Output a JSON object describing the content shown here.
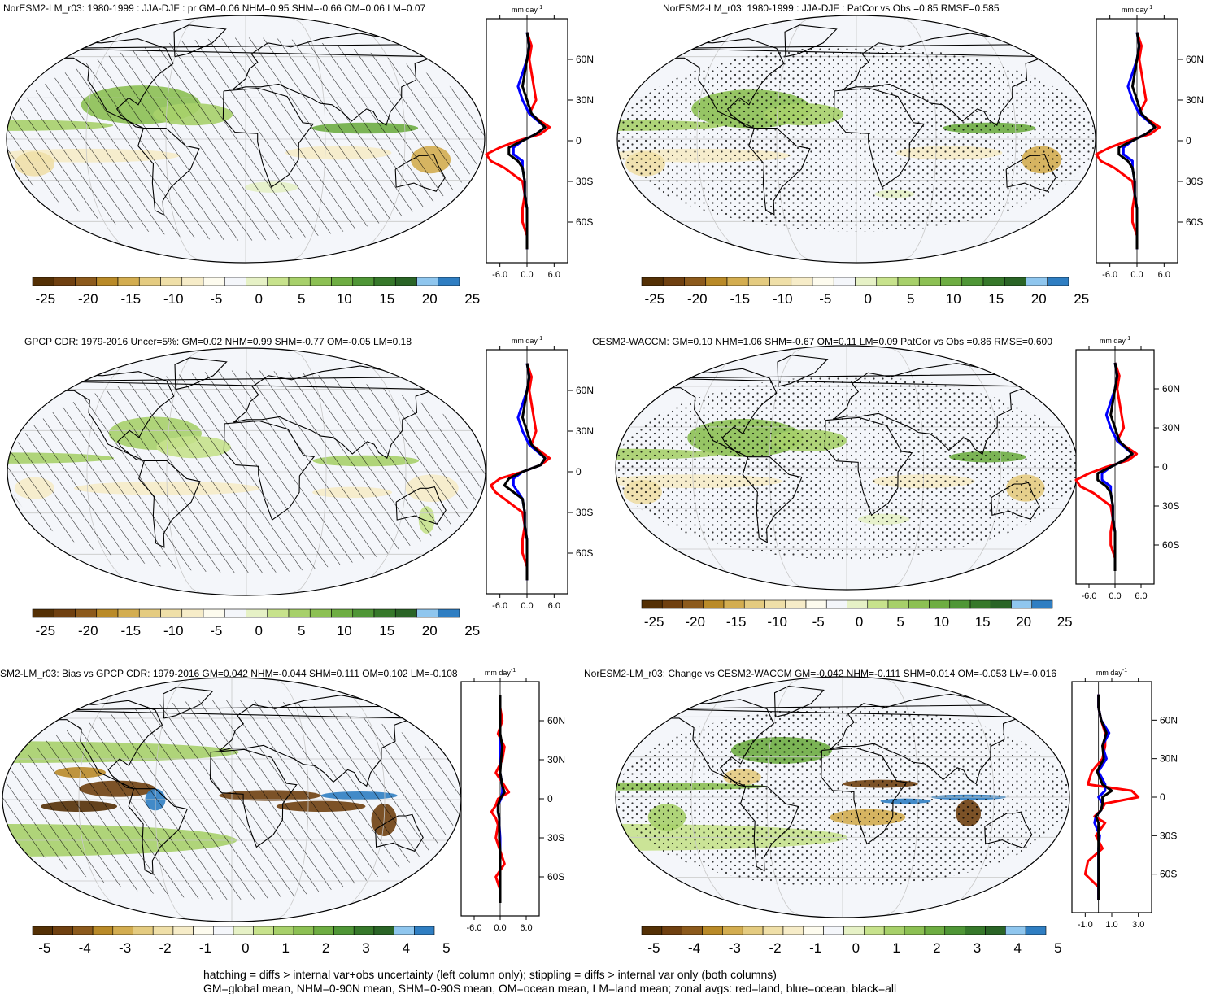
{
  "colors": {
    "colorbar": [
      "#543005",
      "#6f4010",
      "#8c5a1c",
      "#b98a28",
      "#d3ad50",
      "#e4cb80",
      "#efdfa8",
      "#f6ecc8",
      "#fdfbee",
      "#f4f6fa",
      "#e6f1c6",
      "#c7e28c",
      "#a7d06a",
      "#8cc053",
      "#6ead42",
      "#4f9636",
      "#36782a",
      "#2a6426",
      "#8fc6ee",
      "#2f7ec2"
    ],
    "land": "#d1a35f",
    "line_land": "#ff0000",
    "line_ocean": "#0000ff",
    "line_all": "#000000"
  },
  "panels": [
    {
      "title": "NorESM2-LM_r03: 1980-1999 : JJA-DJF : pr GM=0.06 NHM=0.95 SHM=-0.66 OM=0.06 LM=0.07",
      "hatching": true,
      "stippling": false,
      "colorbar_labels": [
        "-25",
        "-20",
        "-15",
        "-10",
        "-5",
        "0",
        "5",
        "10",
        "15",
        "20",
        "25"
      ],
      "zonal_unit": "mm day",
      "zonal_ticks": [
        "-6.0",
        "0.0",
        "6.0"
      ],
      "lat_labels": [
        "60N",
        "30N",
        "0",
        "30S",
        "60S"
      ]
    },
    {
      "title": "NorESM2-LM_r03: 1980-1999 : JJA-DJF : PatCor vs Obs =0.85 RMSE=0.585",
      "hatching": false,
      "stippling": true,
      "colorbar_labels": [
        "-25",
        "-20",
        "-15",
        "-10",
        "-5",
        "0",
        "5",
        "10",
        "15",
        "20",
        "25"
      ],
      "zonal_unit": "mm day",
      "zonal_ticks": [
        "-6.0",
        "0.0",
        "6.0"
      ],
      "lat_labels": [
        "60N",
        "30N",
        "0",
        "30S",
        "60S"
      ]
    },
    {
      "title": "GPCP CDR: 1979-2016 Uncer=5%: GM=0.02 NHM=0.99 SHM=-0.77 OM=-0.05 LM=0.18",
      "hatching": true,
      "stippling": false,
      "colorbar_labels": [
        "-25",
        "-20",
        "-15",
        "-10",
        "-5",
        "0",
        "5",
        "10",
        "15",
        "20",
        "25"
      ],
      "zonal_unit": "mm day",
      "zonal_ticks": [
        "-6.0",
        "0.0",
        "6.0"
      ],
      "lat_labels": [
        "60N",
        "30N",
        "0",
        "30S",
        "60S"
      ]
    },
    {
      "title": "CESM2-WACCM: GM=0.10 NHM=1.06 SHM=-0.67 OM=0.11 LM=0.09 PatCor vs Obs =0.86 RMSE=0.600",
      "hatching": false,
      "stippling": true,
      "colorbar_labels": [
        "-25",
        "-20",
        "-15",
        "-10",
        "-5",
        "0",
        "5",
        "10",
        "15",
        "20",
        "25"
      ],
      "zonal_unit": "mm day",
      "zonal_ticks": [
        "-6.0",
        "0.0",
        "6.0"
      ],
      "lat_labels": [
        "60N",
        "30N",
        "0",
        "30S",
        "60S"
      ]
    },
    {
      "title": "SM2-LM_r03: Bias vs GPCP CDR: 1979-2016 GM=0.042 NHM=-0.044 SHM=0.111 OM=0.102 LM=-0.108",
      "hatching": true,
      "stippling": false,
      "colorbar_labels": [
        "-5",
        "-4",
        "-3",
        "-2",
        "-1",
        "0",
        "1",
        "2",
        "3",
        "4",
        "5"
      ],
      "zonal_unit": "mm day",
      "zonal_ticks": [
        "-6.0",
        "0.0",
        "6.0"
      ],
      "lat_labels": [
        "60N",
        "30N",
        "0",
        "30S",
        "60S"
      ]
    },
    {
      "title": "NorESM2-LM_r03: Change vs CESM2-WACCM GM=-0.042 NHM=-0.111 SHM=0.014 OM=-0.053 LM=-0.016",
      "hatching": false,
      "stippling": true,
      "colorbar_labels": [
        "-5",
        "-4",
        "-3",
        "-2",
        "-1",
        "0",
        "1",
        "2",
        "3",
        "4",
        "5"
      ],
      "zonal_unit": "mm day",
      "zonal_ticks": [
        "-1.0",
        "1.0",
        "3.0"
      ],
      "lat_labels": [
        "60N",
        "30N",
        "0",
        "30S",
        "60S"
      ]
    }
  ],
  "footer": {
    "line1": "hatching = diffs > internal var+obs uncertainty (left column only); stippling = diffs > internal var only (both columns)",
    "line2": "GM=global mean, NHM=0-90N mean, SHM=0-90S mean, OM=ocean mean, LM=land mean; zonal avgs: red=land, blue=ocean, black=all"
  }
}
